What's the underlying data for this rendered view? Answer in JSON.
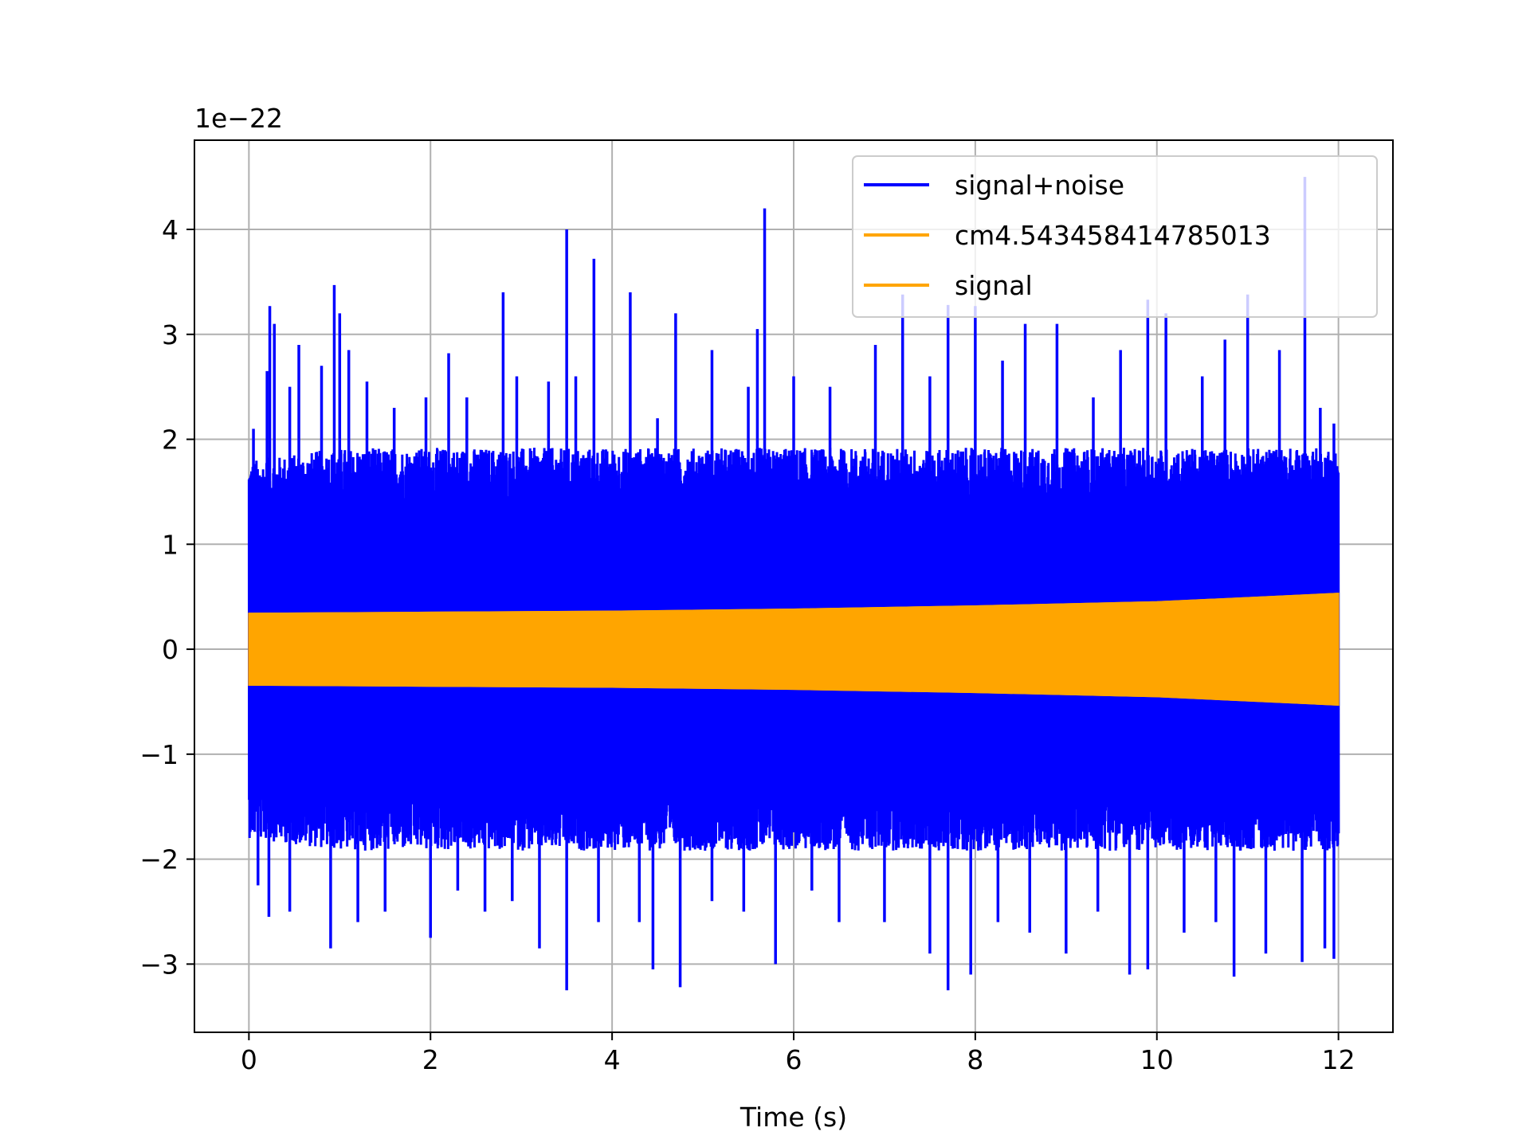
{
  "chart_data": {
    "type": "line",
    "title": "",
    "xlabel": "Time (s)",
    "ylabel": "",
    "y_offset_label": "1e−22",
    "y_scale": 1e-22,
    "xlim": [
      -0.6,
      12.6
    ],
    "ylim": [
      -3.65,
      4.85
    ],
    "x_ticks": [
      0,
      2,
      4,
      6,
      8,
      10,
      12
    ],
    "x_tick_labels": [
      "0",
      "2",
      "4",
      "6",
      "8",
      "10",
      "12"
    ],
    "y_ticks": [
      -3,
      -2,
      -1,
      0,
      1,
      2,
      3,
      4
    ],
    "y_tick_labels": [
      "−3",
      "−2",
      "−1",
      "0",
      "1",
      "2",
      "3",
      "4"
    ],
    "grid": true,
    "legend_position": "top-right",
    "series": [
      {
        "name": "signal+noise",
        "color": "#0000ff",
        "x_range": [
          0,
          12
        ],
        "envelope": {
          "x": [
            0,
            1,
            2,
            3,
            4,
            5,
            6,
            7,
            8,
            9,
            10,
            11,
            12
          ],
          "upper": [
            1.5,
            1.6,
            1.6,
            1.6,
            1.6,
            1.6,
            1.6,
            1.6,
            1.6,
            1.6,
            1.6,
            1.6,
            1.6
          ],
          "lower": [
            -1.5,
            -1.6,
            -1.6,
            -1.6,
            -1.6,
            -1.6,
            -1.6,
            -1.6,
            -1.6,
            -1.6,
            -1.6,
            -1.6,
            -1.6
          ]
        },
        "peaks_upper": [
          {
            "x": 0.05,
            "y": 2.1
          },
          {
            "x": 0.2,
            "y": 2.65
          },
          {
            "x": 0.23,
            "y": 3.27
          },
          {
            "x": 0.28,
            "y": 3.1
          },
          {
            "x": 0.45,
            "y": 2.5
          },
          {
            "x": 0.55,
            "y": 2.9
          },
          {
            "x": 0.8,
            "y": 2.7
          },
          {
            "x": 0.94,
            "y": 3.47
          },
          {
            "x": 1.0,
            "y": 3.2
          },
          {
            "x": 1.1,
            "y": 2.85
          },
          {
            "x": 1.3,
            "y": 2.55
          },
          {
            "x": 1.6,
            "y": 2.3
          },
          {
            "x": 1.95,
            "y": 2.4
          },
          {
            "x": 2.2,
            "y": 2.82
          },
          {
            "x": 2.4,
            "y": 2.4
          },
          {
            "x": 2.8,
            "y": 3.4
          },
          {
            "x": 2.95,
            "y": 2.6
          },
          {
            "x": 3.3,
            "y": 2.55
          },
          {
            "x": 3.5,
            "y": 4.0
          },
          {
            "x": 3.6,
            "y": 2.6
          },
          {
            "x": 3.8,
            "y": 3.72
          },
          {
            "x": 4.2,
            "y": 3.4
          },
          {
            "x": 4.5,
            "y": 2.2
          },
          {
            "x": 4.7,
            "y": 3.2
          },
          {
            "x": 5.1,
            "y": 2.85
          },
          {
            "x": 5.5,
            "y": 2.5
          },
          {
            "x": 5.6,
            "y": 3.05
          },
          {
            "x": 5.68,
            "y": 4.2
          },
          {
            "x": 6.0,
            "y": 2.6
          },
          {
            "x": 6.4,
            "y": 2.5
          },
          {
            "x": 6.9,
            "y": 2.9
          },
          {
            "x": 7.2,
            "y": 3.38
          },
          {
            "x": 7.5,
            "y": 2.6
          },
          {
            "x": 7.7,
            "y": 3.28
          },
          {
            "x": 8.0,
            "y": 3.27
          },
          {
            "x": 8.3,
            "y": 2.75
          },
          {
            "x": 8.55,
            "y": 3.1
          },
          {
            "x": 8.9,
            "y": 3.1
          },
          {
            "x": 9.3,
            "y": 2.4
          },
          {
            "x": 9.6,
            "y": 2.85
          },
          {
            "x": 9.9,
            "y": 3.33
          },
          {
            "x": 10.1,
            "y": 3.2
          },
          {
            "x": 10.5,
            "y": 2.6
          },
          {
            "x": 10.75,
            "y": 2.95
          },
          {
            "x": 11.0,
            "y": 3.38
          },
          {
            "x": 11.35,
            "y": 2.85
          },
          {
            "x": 11.63,
            "y": 4.5
          },
          {
            "x": 11.8,
            "y": 2.3
          },
          {
            "x": 11.95,
            "y": 2.15
          }
        ],
        "peaks_lower": [
          {
            "x": 0.1,
            "y": -2.25
          },
          {
            "x": 0.22,
            "y": -2.55
          },
          {
            "x": 0.45,
            "y": -2.5
          },
          {
            "x": 0.9,
            "y": -2.85
          },
          {
            "x": 1.2,
            "y": -2.6
          },
          {
            "x": 1.5,
            "y": -2.5
          },
          {
            "x": 2.0,
            "y": -2.75
          },
          {
            "x": 2.3,
            "y": -2.3
          },
          {
            "x": 2.6,
            "y": -2.5
          },
          {
            "x": 2.9,
            "y": -2.4
          },
          {
            "x": 3.2,
            "y": -2.85
          },
          {
            "x": 3.5,
            "y": -3.25
          },
          {
            "x": 3.85,
            "y": -2.6
          },
          {
            "x": 4.3,
            "y": -2.6
          },
          {
            "x": 4.45,
            "y": -3.05
          },
          {
            "x": 4.75,
            "y": -3.22
          },
          {
            "x": 5.1,
            "y": -2.4
          },
          {
            "x": 5.45,
            "y": -2.5
          },
          {
            "x": 5.8,
            "y": -3.0
          },
          {
            "x": 6.2,
            "y": -2.3
          },
          {
            "x": 6.5,
            "y": -2.6
          },
          {
            "x": 7.0,
            "y": -2.6
          },
          {
            "x": 7.5,
            "y": -2.9
          },
          {
            "x": 7.7,
            "y": -3.25
          },
          {
            "x": 7.95,
            "y": -3.1
          },
          {
            "x": 8.25,
            "y": -2.6
          },
          {
            "x": 8.6,
            "y": -2.7
          },
          {
            "x": 9.0,
            "y": -2.9
          },
          {
            "x": 9.35,
            "y": -2.5
          },
          {
            "x": 9.7,
            "y": -3.1
          },
          {
            "x": 9.9,
            "y": -3.05
          },
          {
            "x": 10.3,
            "y": -2.7
          },
          {
            "x": 10.65,
            "y": -2.6
          },
          {
            "x": 10.85,
            "y": -3.12
          },
          {
            "x": 11.2,
            "y": -2.9
          },
          {
            "x": 11.6,
            "y": -2.98
          },
          {
            "x": 11.85,
            "y": -2.85
          },
          {
            "x": 11.95,
            "y": -2.95
          }
        ]
      },
      {
        "name": "cm4.543458414785013",
        "color": "#ffa500",
        "x_range": [
          0,
          12
        ],
        "envelope": {
          "x": [
            0,
            2,
            4,
            6,
            8,
            10,
            12
          ],
          "upper": [
            0.34,
            0.35,
            0.36,
            0.38,
            0.41,
            0.45,
            0.53
          ],
          "lower": [
            -0.34,
            -0.35,
            -0.36,
            -0.38,
            -0.41,
            -0.45,
            -0.53
          ]
        }
      },
      {
        "name": "signal",
        "color": "#ffa500",
        "x_range": [
          0,
          12
        ],
        "envelope": {
          "x": [
            0,
            2,
            4,
            6,
            8,
            10,
            12
          ],
          "upper": [
            0.34,
            0.35,
            0.36,
            0.38,
            0.41,
            0.45,
            0.53
          ],
          "lower": [
            -0.34,
            -0.35,
            -0.36,
            -0.38,
            -0.41,
            -0.45,
            -0.53
          ]
        }
      }
    ]
  }
}
